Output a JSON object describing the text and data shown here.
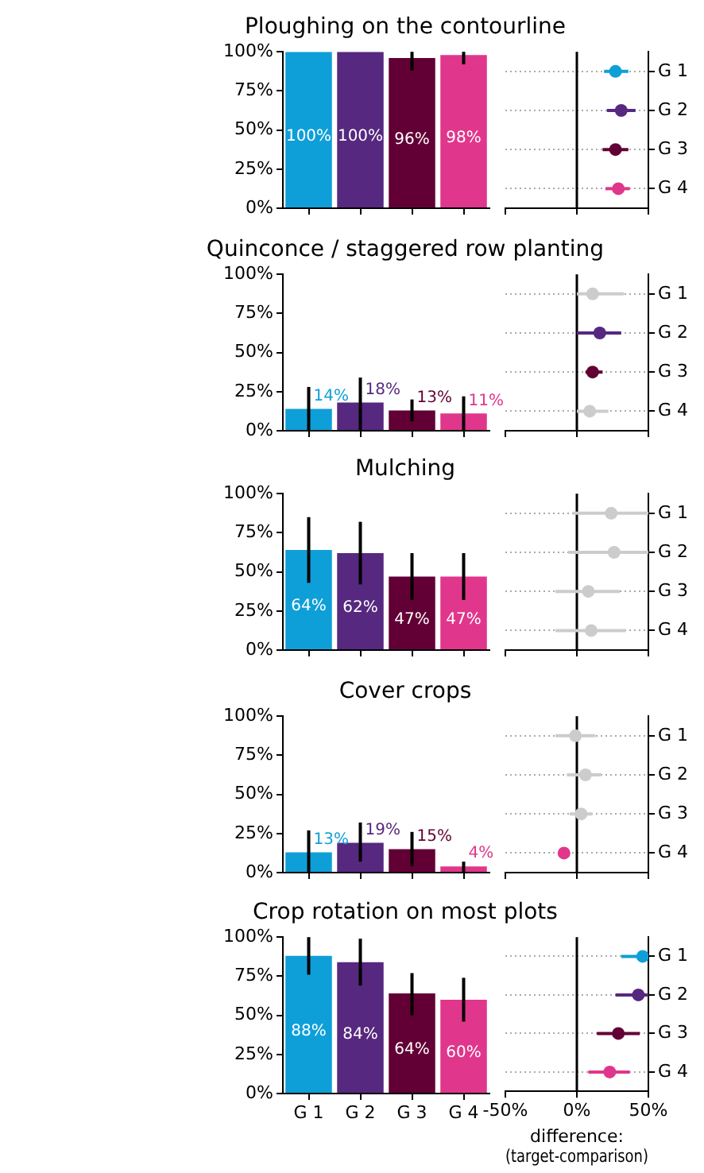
{
  "chart_data": [
    {
      "type": "bar",
      "title": "Ploughing on the contourline",
      "categories": [
        null,
        null,
        null,
        null
      ],
      "values": [
        100,
        100,
        96,
        98
      ],
      "colors": [
        "#0f9fd8",
        "#56287f",
        "#620035",
        "#e0368b"
      ],
      "errors": [
        null,
        null,
        [
          88,
          100
        ],
        [
          92,
          100
        ]
      ],
      "value_labels": [
        "100%",
        "100%",
        "96%",
        "98%"
      ],
      "ylim": [
        0,
        100
      ],
      "yticks": [
        {
          "value": 0,
          "label": "0%"
        },
        {
          "value": 25,
          "label": "25%"
        },
        {
          "value": 50,
          "label": "50%"
        },
        {
          "value": 75,
          "label": "75%"
        },
        {
          "value": 100,
          "label": "100%"
        }
      ],
      "tick_labels": "y"
    },
    {
      "type": "scatter",
      "orientation": "horizontal",
      "marker": "circle",
      "categories": [
        "G 1",
        "G 2",
        "G 3",
        "G 4"
      ],
      "values": [
        27,
        31,
        27,
        29
      ],
      "colors": [
        "#0f9fd8",
        "#56287f",
        "#620035",
        "#e0368b"
      ],
      "errors": [
        [
          19,
          36
        ],
        [
          21,
          41
        ],
        [
          18,
          36
        ],
        [
          20,
          37
        ]
      ],
      "xlim": [
        -50,
        50
      ],
      "xticks": [
        {
          "value": -50,
          "label": null
        },
        {
          "value": 0,
          "label": null
        },
        {
          "value": 50,
          "label": null
        }
      ],
      "ref_lines": [
        {
          "axis": "x",
          "value": 0,
          "color": "#000000"
        }
      ],
      "grid": "y",
      "tick_labels": "y"
    },
    {
      "type": "bar",
      "title": "Quinconce / staggered row planting",
      "categories": [
        null,
        null,
        null,
        null
      ],
      "values": [
        14,
        18,
        13,
        11
      ],
      "colors": [
        "#0f9fd8",
        "#56287f",
        "#620035",
        "#e0368b"
      ],
      "errors": [
        [
          0,
          28
        ],
        [
          0,
          34
        ],
        [
          6,
          20
        ],
        [
          0,
          22
        ]
      ],
      "value_labels": [
        "14%",
        "18%",
        "13%",
        "11%"
      ],
      "ylim": [
        0,
        100
      ],
      "yticks": [
        {
          "value": 0,
          "label": "0%"
        },
        {
          "value": 25,
          "label": "25%"
        },
        {
          "value": 50,
          "label": "50%"
        },
        {
          "value": 75,
          "label": "75%"
        },
        {
          "value": 100,
          "label": "100%"
        }
      ],
      "tick_labels": "y"
    },
    {
      "type": "scatter",
      "orientation": "horizontal",
      "marker": "circle",
      "categories": [
        "G 1",
        "G 2",
        "G 3",
        "G 4"
      ],
      "values": [
        11,
        16,
        11,
        9
      ],
      "colors": [
        "#cccccc",
        "#56287f",
        "#620035",
        "#cccccc"
      ],
      "errors": [
        [
          0,
          33
        ],
        [
          0,
          31
        ],
        [
          6,
          18
        ],
        [
          0,
          22
        ]
      ],
      "xlim": [
        -50,
        50
      ],
      "xticks": [
        {
          "value": -50,
          "label": null
        },
        {
          "value": 0,
          "label": null
        },
        {
          "value": 50,
          "label": null
        }
      ],
      "ref_lines": [
        {
          "axis": "x",
          "value": 0,
          "color": "#000000"
        }
      ],
      "grid": "y",
      "tick_labels": "y"
    },
    {
      "type": "bar",
      "title": "Mulching",
      "categories": [
        null,
        null,
        null,
        null
      ],
      "values": [
        64,
        62,
        47,
        47
      ],
      "colors": [
        "#0f9fd8",
        "#56287f",
        "#620035",
        "#e0368b"
      ],
      "errors": [
        [
          43,
          85
        ],
        [
          42,
          82
        ],
        [
          32,
          62
        ],
        [
          32,
          62
        ]
      ],
      "value_labels": [
        "64%",
        "62%",
        "47%",
        "47%"
      ],
      "ylim": [
        0,
        100
      ],
      "yticks": [
        {
          "value": 0,
          "label": "0%"
        },
        {
          "value": 25,
          "label": "25%"
        },
        {
          "value": 50,
          "label": "50%"
        },
        {
          "value": 75,
          "label": "75%"
        },
        {
          "value": 100,
          "label": "100%"
        }
      ],
      "tick_labels": "y"
    },
    {
      "type": "scatter",
      "orientation": "horizontal",
      "marker": "circle",
      "categories": [
        "G 1",
        "G 2",
        "G 3",
        "G 4"
      ],
      "values": [
        24,
        26,
        8,
        10
      ],
      "colors": [
        "#cccccc",
        "#cccccc",
        "#cccccc",
        "#cccccc"
      ],
      "errors": [
        [
          -3,
          50
        ],
        [
          -6,
          50
        ],
        [
          -15,
          30
        ],
        [
          -15,
          34
        ]
      ],
      "xlim": [
        -50,
        50
      ],
      "xticks": [
        {
          "value": -50,
          "label": null
        },
        {
          "value": 0,
          "label": null
        },
        {
          "value": 50,
          "label": null
        }
      ],
      "ref_lines": [
        {
          "axis": "x",
          "value": 0,
          "color": "#000000"
        }
      ],
      "grid": "y",
      "tick_labels": "y"
    },
    {
      "type": "bar",
      "title": "Cover crops",
      "categories": [
        null,
        null,
        null,
        null
      ],
      "values": [
        13,
        19,
        15,
        4
      ],
      "colors": [
        "#0f9fd8",
        "#56287f",
        "#620035",
        "#e0368b"
      ],
      "errors": [
        [
          0,
          27
        ],
        [
          7,
          32
        ],
        [
          4,
          26
        ],
        [
          0,
          7
        ]
      ],
      "value_labels": [
        "13%",
        "19%",
        "15%",
        "4%"
      ],
      "ylim": [
        0,
        100
      ],
      "yticks": [
        {
          "value": 0,
          "label": "0%"
        },
        {
          "value": 25,
          "label": "25%"
        },
        {
          "value": 50,
          "label": "50%"
        },
        {
          "value": 75,
          "label": "75%"
        },
        {
          "value": 100,
          "label": "100%"
        }
      ],
      "tick_labels": "y"
    },
    {
      "type": "scatter",
      "orientation": "horizontal",
      "marker": "circle",
      "categories": [
        "G 1",
        "G 2",
        "G 3",
        "G 4"
      ],
      "values": [
        -1,
        6,
        3,
        -9
      ],
      "colors": [
        "#cccccc",
        "#cccccc",
        "#cccccc",
        "#e0368b"
      ],
      "errors": [
        [
          -15,
          13
        ],
        [
          -7,
          17
        ],
        [
          -5,
          11
        ],
        [
          -12,
          -6
        ]
      ],
      "xlim": [
        -50,
        50
      ],
      "xticks": [
        {
          "value": -50,
          "label": null
        },
        {
          "value": 0,
          "label": null
        },
        {
          "value": 50,
          "label": null
        }
      ],
      "ref_lines": [
        {
          "axis": "x",
          "value": 0,
          "color": "#000000"
        }
      ],
      "grid": "y",
      "tick_labels": "y"
    },
    {
      "type": "bar",
      "title": "Crop rotation on most plots",
      "categories": [
        "G 1",
        "G 2",
        "G 3",
        "G 4"
      ],
      "values": [
        88,
        84,
        64,
        60
      ],
      "colors": [
        "#0f9fd8",
        "#56287f",
        "#620035",
        "#e0368b"
      ],
      "errors": [
        [
          76,
          100
        ],
        [
          69,
          99
        ],
        [
          50,
          77
        ],
        [
          46,
          74
        ]
      ],
      "value_labels": [
        "88%",
        "84%",
        "64%",
        "60%"
      ],
      "ylim": [
        0,
        100
      ],
      "yticks": [
        {
          "value": 0,
          "label": "0%"
        },
        {
          "value": 25,
          "label": "25%"
        },
        {
          "value": 50,
          "label": "50%"
        },
        {
          "value": 75,
          "label": "75%"
        },
        {
          "value": 100,
          "label": "100%"
        }
      ]
    },
    {
      "type": "scatter",
      "orientation": "horizontal",
      "marker": "circle",
      "categories": [
        "G 1",
        "G 2",
        "G 3",
        "G 4"
      ],
      "values": [
        46,
        43,
        29,
        23
      ],
      "colors": [
        "#0f9fd8",
        "#56287f",
        "#620035",
        "#e0368b"
      ],
      "errors": [
        [
          31,
          50
        ],
        [
          27,
          50
        ],
        [
          14,
          44
        ],
        [
          8,
          37
        ]
      ],
      "xlim": [
        -50,
        50
      ],
      "xticks": [
        {
          "value": -50,
          "label": "-50%"
        },
        {
          "value": 0,
          "label": "0%"
        },
        {
          "value": 50,
          "label": "50%"
        }
      ],
      "ref_lines": [
        {
          "axis": "x",
          "value": 0,
          "color": "#000000"
        }
      ],
      "grid": "y",
      "xlabel": "difference:\n(target-comparison)"
    }
  ]
}
